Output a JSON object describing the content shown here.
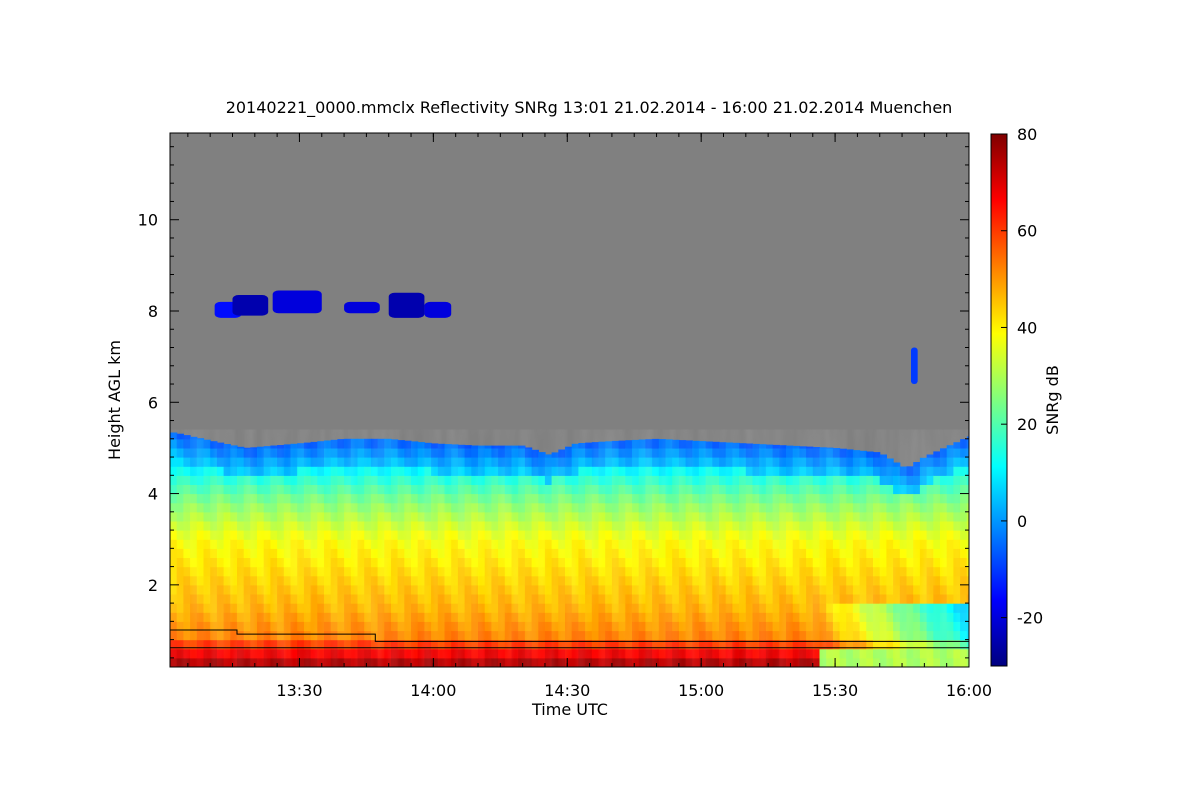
{
  "chart_data": {
    "type": "heatmap",
    "title": "20140221_0000.mmclx Reflectivity SNRg   13:01 21.02.2014 - 16:00 21.02.2014 Muenchen",
    "xlabel": "Time UTC",
    "ylabel": "Height AGL km",
    "colorbar_label": "SNRg dB",
    "x_ticks": [
      "13:30",
      "14:00",
      "14:30",
      "15:00",
      "15:30",
      "16:00"
    ],
    "x_tick_values_min": [
      810,
      840,
      870,
      900,
      930,
      960
    ],
    "xlim_min": [
      781,
      960
    ],
    "y_ticks": [
      "2",
      "4",
      "6",
      "8",
      "10"
    ],
    "y_tick_values": [
      2,
      4,
      6,
      8,
      10
    ],
    "ylim": [
      0.2,
      11.9
    ],
    "colorbar_ticks": [
      "-20",
      "0",
      "20",
      "40",
      "60",
      "80"
    ],
    "colorbar_tick_values": [
      -20,
      0,
      20,
      40,
      60,
      80
    ],
    "colorbar_range": [
      -30,
      80
    ],
    "colormap": [
      "#00007f",
      "#0000ff",
      "#007fff",
      "#00ffff",
      "#7fff7f",
      "#ffff00",
      "#ff7f00",
      "#ff0000",
      "#7f0000"
    ],
    "no_signal_color": "#808080",
    "signal_top_km": [
      [
        781,
        5.35
      ],
      [
        784,
        5.3
      ],
      [
        786,
        5.25
      ],
      [
        793,
        5.1
      ],
      [
        798,
        5.0
      ],
      [
        804,
        5.05
      ],
      [
        810,
        5.1
      ],
      [
        820,
        5.2
      ],
      [
        830,
        5.2
      ],
      [
        840,
        5.1
      ],
      [
        850,
        5.05
      ],
      [
        860,
        5.05
      ],
      [
        866,
        4.85
      ],
      [
        872,
        5.1
      ],
      [
        880,
        5.15
      ],
      [
        890,
        5.2
      ],
      [
        900,
        5.15
      ],
      [
        910,
        5.1
      ],
      [
        920,
        5.05
      ],
      [
        930,
        5.0
      ],
      [
        940,
        4.9
      ],
      [
        946,
        4.55
      ],
      [
        950,
        4.8
      ],
      [
        960,
        5.25
      ]
    ],
    "upper_cloud_layer": [
      {
        "t": [
          791,
          797
        ],
        "h": [
          7.85,
          8.2
        ],
        "dbz": -15
      },
      {
        "t": [
          795,
          803
        ],
        "h": [
          7.9,
          8.35
        ],
        "dbz": -25
      },
      {
        "t": [
          804,
          815
        ],
        "h": [
          7.95,
          8.45
        ],
        "dbz": -20
      },
      {
        "t": [
          820,
          828
        ],
        "h": [
          7.95,
          8.2
        ],
        "dbz": -20
      },
      {
        "t": [
          830,
          838
        ],
        "h": [
          7.85,
          8.4
        ],
        "dbz": -25
      },
      {
        "t": [
          838,
          844
        ],
        "h": [
          7.85,
          8.2
        ],
        "dbz": -20
      }
    ],
    "isolated_echo": {
      "t": [
        947,
        948.5
      ],
      "h": [
        6.4,
        7.2
      ],
      "dbz": -10
    },
    "lines": [
      {
        "points_min_km": [
          [
            781,
            1.01
          ],
          [
            796,
            1.01
          ],
          [
            796,
            0.92
          ],
          [
            827,
            0.92
          ],
          [
            827,
            0.76
          ],
          [
            960,
            0.76
          ]
        ]
      },
      {
        "points_min_km": [
          [
            781,
            0.62
          ],
          [
            960,
            0.62
          ]
        ]
      }
    ]
  }
}
